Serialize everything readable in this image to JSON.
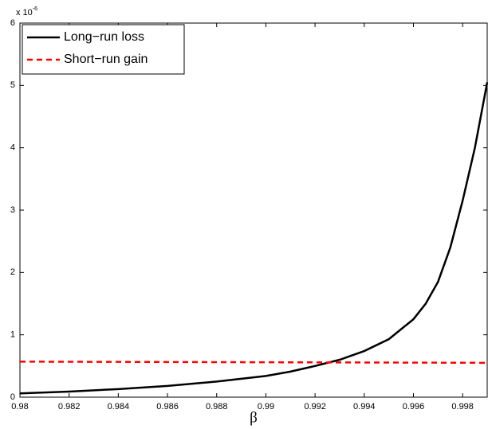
{
  "chart_data": {
    "type": "line",
    "xlabel": "β",
    "axis_multiplier": {
      "base": "x 10",
      "exponent": "-6"
    },
    "x": [
      0.98,
      0.982,
      0.984,
      0.986,
      0.988,
      0.99,
      0.991,
      0.992,
      0.993,
      0.994,
      0.995,
      0.996,
      0.9965,
      0.997,
      0.9975,
      0.998,
      0.9985,
      0.999
    ],
    "series": [
      {
        "name": "Long−run loss",
        "color": "#000000",
        "dash": false,
        "values": [
          0.06,
          0.09,
          0.13,
          0.18,
          0.25,
          0.34,
          0.41,
          0.5,
          0.6,
          0.74,
          0.93,
          1.25,
          1.5,
          1.85,
          2.4,
          3.15,
          4.0,
          5.05
        ]
      },
      {
        "name": "Short−run gain",
        "color": "#ff0000",
        "dash": true,
        "values": [
          0.57,
          0.568,
          0.566,
          0.564,
          0.562,
          0.56,
          0.559,
          0.558,
          0.557,
          0.556,
          0.555,
          0.554,
          0.5535,
          0.553,
          0.5525,
          0.552,
          0.5515,
          0.551
        ]
      }
    ],
    "xlim": [
      0.98,
      0.999
    ],
    "xticks": [
      0.98,
      0.982,
      0.984,
      0.986,
      0.988,
      0.99,
      0.992,
      0.994,
      0.996,
      0.998
    ],
    "ylim": [
      0,
      6
    ],
    "yticks": [
      0,
      1,
      2,
      3,
      4,
      5,
      6
    ],
    "legend": "upper-left"
  }
}
